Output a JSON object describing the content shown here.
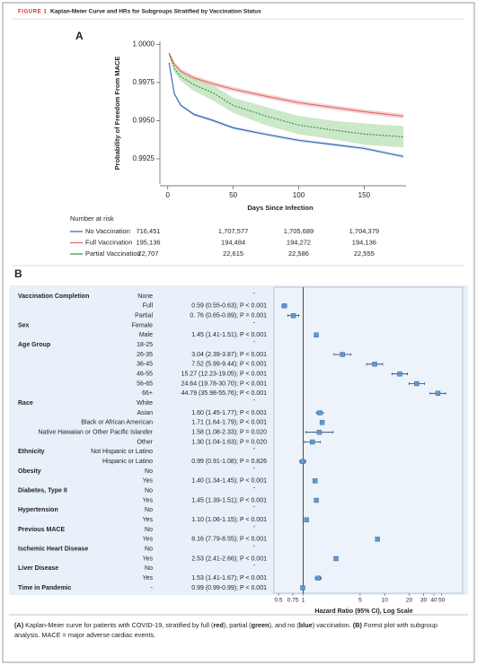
{
  "figure": {
    "label": "FIGURE 1",
    "title": "Kaplan-Meier Curve and HRs for Subgroups Stratified by Vaccination Status",
    "caption": [
      "(A)",
      " Kaplan-Meier curve for patients with COVID-19, stratified by full (",
      "red",
      "), partial (",
      "green",
      "), and no (",
      "blue",
      ") vaccination. ",
      "(B)",
      " Forest plot with subgroup analysis. MACE = major adverse cardiac events."
    ]
  },
  "chart_data": [
    {
      "type": "survival",
      "panel": "A",
      "ylabel": "Probability of Freedom From MACE",
      "xlabel": "Days Since Infection",
      "xlim": [
        -6,
        182
      ],
      "xticks": [
        0,
        50,
        100,
        150
      ],
      "ylim": [
        0.99085,
        1.0002
      ],
      "yticks": [
        {
          "value": 1,
          "label": "1.0000"
        },
        0.9975,
        {
          "value": 0.995,
          "label": "0.9950"
        },
        0.9925
      ],
      "x": [
        1,
        5,
        10,
        20,
        35,
        50,
        75,
        100,
        125,
        150,
        180
      ],
      "series": [
        {
          "name": "No Vaccination",
          "color": "#2f64a8",
          "band_color": "#b8d0ec",
          "values": [
            0.9988,
            0.99676,
            0.996,
            0.99541,
            0.995,
            0.99453,
            0.9941,
            0.99371,
            0.99345,
            0.99318,
            0.99265
          ],
          "lower": [
            0.9987,
            0.99666,
            0.9959,
            0.99531,
            0.9949,
            0.99443,
            0.994,
            0.99361,
            0.99335,
            0.99308,
            0.99255
          ],
          "upper": [
            0.9989,
            0.99686,
            0.9961,
            0.99551,
            0.9951,
            0.99463,
            0.9942,
            0.99381,
            0.99355,
            0.99328,
            0.99275
          ]
        },
        {
          "name": "Full Vaccination",
          "color": "#e06666",
          "band_color": "#f4b6b6",
          "values": [
            0.99941,
            0.9987,
            0.99824,
            0.9978,
            0.9974,
            0.99706,
            0.9966,
            0.99618,
            0.99588,
            0.99559,
            0.99529
          ],
          "lower": [
            0.99926,
            0.99855,
            0.99809,
            0.99765,
            0.99725,
            0.99691,
            0.99645,
            0.99603,
            0.99573,
            0.99544,
            0.99514
          ],
          "upper": [
            0.99956,
            0.99885,
            0.99839,
            0.99795,
            0.99755,
            0.99721,
            0.99675,
            0.99633,
            0.99603,
            0.99574,
            0.99544
          ]
        },
        {
          "name": "Partial Vaccination",
          "color": "#3e8e41",
          "band_color": "#a8d8a4",
          "dashed": true,
          "values": [
            0.9994,
            0.9984,
            0.99788,
            0.99735,
            0.9968,
            0.996,
            0.9953,
            0.99471,
            0.9944,
            0.99412,
            0.99394
          ],
          "lower": [
            0.9993,
            0.9982,
            0.99758,
            0.99695,
            0.9963,
            0.9955,
            0.9947,
            0.99411,
            0.9938,
            0.99342,
            0.99324
          ],
          "upper": [
            0.9995,
            0.9986,
            0.99818,
            0.99775,
            0.9973,
            0.9965,
            0.9959,
            0.99531,
            0.995,
            0.99482,
            0.99464
          ]
        }
      ],
      "risk_table": {
        "title": "Number at risk",
        "rows": [
          [
            "716,451",
            "1,707,577",
            "1,705,689",
            "1,704,379"
          ],
          [
            "195,136",
            "194,484",
            "194,272",
            "194,136"
          ],
          [
            "22,707",
            "22,615",
            "22,586",
            "22,555"
          ]
        ]
      }
    },
    {
      "type": "forest",
      "panel": "B",
      "xlabel": "Hazard Ratio (95% CI), Log Scale",
      "xscale": "log",
      "xlim": [
        0.44,
        90
      ],
      "xticks": [
        0.5,
        0.75,
        1,
        5,
        10,
        20,
        30,
        40,
        50
      ],
      "reference": 1,
      "color": "#5b9bd5",
      "line_color": "#1f3864",
      "rows": [
        {
          "group": "Vaccination Completion",
          "subgroup": "None",
          "label": "-"
        },
        {
          "subgroup": "Full",
          "hr": 0.59,
          "lower": 0.55,
          "upper": 0.63,
          "label": "0.59 (0.55-0.63); P < 0.001"
        },
        {
          "subgroup": "Partial",
          "hr": 0.76,
          "lower": 0.65,
          "upper": 0.89,
          "label": "0. 76 (0.65-0.89); P = 0.001"
        },
        {
          "group": "Sex",
          "subgroup": "Female",
          "label": "-"
        },
        {
          "subgroup": "Male",
          "hr": 1.45,
          "lower": 1.41,
          "upper": 1.51,
          "label": "1.45 (1.41-1.51); P < 0.001"
        },
        {
          "group": "Age Group",
          "subgroup": "18-25",
          "label": "-"
        },
        {
          "subgroup": "26-35",
          "hr": 3.04,
          "lower": 2.39,
          "upper": 3.87,
          "label": "3.04 (2.39-3.87); P < 0.001"
        },
        {
          "subgroup": "36-45",
          "hr": 7.52,
          "lower": 5.99,
          "upper": 9.44,
          "label": "7.52 (5.99-9.44); P < 0.001"
        },
        {
          "subgroup": "46-55",
          "hr": 15.27,
          "lower": 12.23,
          "upper": 19.05,
          "label": "15.27 (12.23-19.05); P < 0.001"
        },
        {
          "subgroup": "56-65",
          "hr": 24.64,
          "lower": 19.78,
          "upper": 30.7,
          "label": "24.64 (19.78-30.70); P < 0.001"
        },
        {
          "subgroup": "66+",
          "hr": 44.79,
          "lower": 35.98,
          "upper": 55.76,
          "label": "44.79 (35.98-55.76); P < 0.001"
        },
        {
          "group": "Race",
          "subgroup": "White",
          "label": "-"
        },
        {
          "subgroup": "Asian",
          "hr": 1.6,
          "lower": 1.45,
          "upper": 1.77,
          "label": "1.60 (1.45-1.77); P < 0.001"
        },
        {
          "subgroup": "Black or African American",
          "hr": 1.71,
          "lower": 1.64,
          "upper": 1.79,
          "label": "1.71 (1.64-1.79); P < 0.001"
        },
        {
          "subgroup": "Native Hawaiian or Other Pacific Islander",
          "hr": 1.58,
          "lower": 1.08,
          "upper": 2.33,
          "label": "1.58 (1.08-2.33); P = 0.020"
        },
        {
          "subgroup": "Other",
          "hr": 1.3,
          "lower": 1.04,
          "upper": 1.63,
          "label": "1.30 (1.04-1.63); P = 0.020"
        },
        {
          "group": "Ethnicity",
          "subgroup": "Not Hispanic or Latino",
          "label": "-"
        },
        {
          "subgroup": "Hispanic or Latino",
          "hr": 0.99,
          "lower": 0.91,
          "upper": 1.08,
          "label": "0.99 (0.91-1.08); P = 0.826"
        },
        {
          "group": "Obesity",
          "subgroup": "No",
          "label": "-"
        },
        {
          "subgroup": "Yes",
          "hr": 1.4,
          "lower": 1.34,
          "upper": 1.45,
          "label": "1.40 (1.34-1.45); P < 0.001"
        },
        {
          "group": "Diabetes, Type II",
          "subgroup": "No",
          "label": "-"
        },
        {
          "subgroup": "Yes",
          "hr": 1.45,
          "lower": 1.39,
          "upper": 1.51,
          "label": "1.45 (1.39-1.51); P < 0.001"
        },
        {
          "group": "Hypertension",
          "subgroup": "No",
          "label": "-"
        },
        {
          "subgroup": "Yes",
          "hr": 1.1,
          "lower": 1.06,
          "upper": 1.15,
          "label": "1.10 (1.06-1.15); P < 0.001"
        },
        {
          "group": "Previous MACE",
          "subgroup": "No",
          "label": "-"
        },
        {
          "subgroup": "Yes",
          "hr": 8.16,
          "lower": 7.79,
          "upper": 8.55,
          "label": "8.16 (7.79-8.55); P < 0.001"
        },
        {
          "group": "Ischemic Heart Disease",
          "subgroup": "No",
          "label": "-"
        },
        {
          "subgroup": "Yes",
          "hr": 2.53,
          "lower": 2.41,
          "upper": 2.66,
          "label": "2.53 (2.41-2.66); P < 0.001"
        },
        {
          "group": "Liver Disease",
          "subgroup": "No",
          "label": "-"
        },
        {
          "subgroup": "Yes",
          "hr": 1.53,
          "lower": 1.41,
          "upper": 1.67,
          "label": "1.53 (1.41-1.67); P < 0.001"
        },
        {
          "group": "Time in Pandemic",
          "subgroup": "-",
          "hr": 0.99,
          "lower": 0.99,
          "upper": 0.99,
          "label": "0.99 (0.99-0.99); P < 0.001"
        }
      ]
    }
  ]
}
